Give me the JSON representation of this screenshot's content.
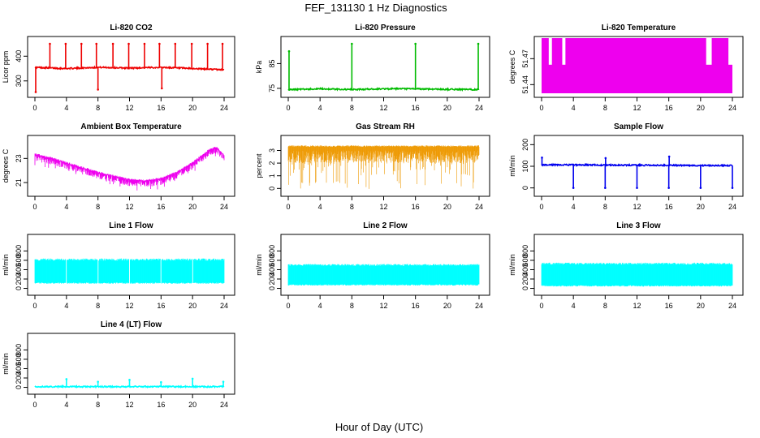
{
  "figure": {
    "title": "FEF_131130  1 Hz Diagnostics",
    "xlabel": "Hour of Day (UTC)"
  },
  "chart_data": [
    {
      "type": "line",
      "title": "Li-820 CO2",
      "ylabel": "Licor ppm",
      "color": "#ee0000",
      "xlim": [
        0,
        24
      ],
      "ylim": [
        250,
        460
      ],
      "x_ticks": [
        "0",
        "4",
        "8",
        "12",
        "16",
        "20",
        "24"
      ],
      "y_ticks": [
        "300",
        "400"
      ],
      "band": [
        {
          "x": 0,
          "y": 355
        },
        {
          "x": 4,
          "y": 350
        },
        {
          "x": 8,
          "y": 355
        },
        {
          "x": 12,
          "y": 352
        },
        {
          "x": 16,
          "y": 355
        },
        {
          "x": 20,
          "y": 350
        },
        {
          "x": 24,
          "y": 345
        }
      ],
      "spikes": [
        {
          "x": 0.1,
          "y": 255
        },
        {
          "x": 1.9,
          "y": 450
        },
        {
          "x": 3.9,
          "y": 450
        },
        {
          "x": 5.9,
          "y": 450
        },
        {
          "x": 7.8,
          "y": 450
        },
        {
          "x": 8.0,
          "y": 265
        },
        {
          "x": 9.9,
          "y": 450
        },
        {
          "x": 11.9,
          "y": 450
        },
        {
          "x": 13.9,
          "y": 450
        },
        {
          "x": 15.8,
          "y": 450
        },
        {
          "x": 16.1,
          "y": 270
        },
        {
          "x": 17.8,
          "y": 450
        },
        {
          "x": 19.9,
          "y": 450
        },
        {
          "x": 21.9,
          "y": 450
        },
        {
          "x": 23.8,
          "y": 450
        }
      ]
    },
    {
      "type": "line",
      "title": "Li-820 Pressure",
      "ylabel": "kPa",
      "color": "#00bb00",
      "xlim": [
        0,
        24
      ],
      "ylim": [
        73,
        94
      ],
      "x_ticks": [
        "0",
        "4",
        "8",
        "12",
        "16",
        "20",
        "24"
      ],
      "y_ticks": [
        "75",
        "85"
      ],
      "band": [
        {
          "x": 0,
          "y": 74.5
        },
        {
          "x": 4,
          "y": 74.8
        },
        {
          "x": 8,
          "y": 74.5
        },
        {
          "x": 12,
          "y": 74.8
        },
        {
          "x": 16,
          "y": 74.8
        },
        {
          "x": 20,
          "y": 74.6
        },
        {
          "x": 24,
          "y": 74.5
        }
      ],
      "spikes": [
        {
          "x": 0.1,
          "y": 90
        },
        {
          "x": 8.0,
          "y": 93
        },
        {
          "x": 16.0,
          "y": 93
        },
        {
          "x": 23.9,
          "y": 93
        }
      ]
    },
    {
      "type": "area",
      "title": "Li-820 Temperature",
      "ylabel": "degrees C",
      "color": "#ee00ee",
      "xlim": [
        0,
        24
      ],
      "ylim": [
        51.43,
        51.49
      ],
      "x_ticks": [
        "0",
        "4",
        "8",
        "12",
        "16",
        "20",
        "24"
      ],
      "y_ticks": [
        "51.44",
        "51.47"
      ],
      "y_tick_values": [
        51.44,
        51.47
      ],
      "fill_to": 51.463,
      "full_height_intervals": [
        [
          0,
          0.9
        ],
        [
          1.3,
          2.6
        ],
        [
          3.0,
          20.7
        ],
        [
          21.4,
          23.5
        ]
      ]
    },
    {
      "type": "line",
      "title": "Ambient Box Temperature",
      "ylabel": "degrees C",
      "color": "#ee00ee",
      "xlim": [
        0,
        24
      ],
      "ylim": [
        20.2,
        24.5
      ],
      "x_ticks": [
        "0",
        "4",
        "8",
        "12",
        "16",
        "20",
        "24"
      ],
      "y_ticks": [
        "21",
        "23"
      ],
      "series": [
        {
          "x": 0,
          "y": 23.3
        },
        {
          "x": 2,
          "y": 23.0
        },
        {
          "x": 4,
          "y": 22.6
        },
        {
          "x": 6,
          "y": 22.2
        },
        {
          "x": 8,
          "y": 21.8
        },
        {
          "x": 10,
          "y": 21.5
        },
        {
          "x": 12,
          "y": 21.2
        },
        {
          "x": 14,
          "y": 21.1
        },
        {
          "x": 16,
          "y": 21.3
        },
        {
          "x": 18,
          "y": 21.8
        },
        {
          "x": 20,
          "y": 22.6
        },
        {
          "x": 22,
          "y": 23.6
        },
        {
          "x": 23,
          "y": 23.9
        },
        {
          "x": 24,
          "y": 23.2
        }
      ],
      "noise": 0.55
    },
    {
      "type": "area",
      "title": "Gas Stream RH",
      "ylabel": "percent",
      "color": "#ee9900",
      "xlim": [
        0,
        24
      ],
      "ylim": [
        -0.3,
        3.8
      ],
      "x_ticks": [
        "0",
        "4",
        "8",
        "12",
        "16",
        "20",
        "24"
      ],
      "y_ticks": [
        "0",
        "1",
        "2",
        "3"
      ],
      "upper": 3.4,
      "lower_typical": 2.0,
      "lower_min": -0.1
    },
    {
      "type": "line",
      "title": "Sample Flow",
      "ylabel": "ml/min",
      "color": "#0000ee",
      "xlim": [
        0,
        24
      ],
      "ylim": [
        -20,
        220
      ],
      "x_ticks": [
        "0",
        "4",
        "8",
        "12",
        "16",
        "20",
        "24"
      ],
      "y_ticks": [
        "0",
        "100",
        "200"
      ],
      "band": [
        {
          "x": 0,
          "y": 107
        },
        {
          "x": 12,
          "y": 105
        },
        {
          "x": 24,
          "y": 103
        }
      ],
      "spikes": [
        {
          "x": 0.05,
          "y": 140
        },
        {
          "x": 4.0,
          "y": 0
        },
        {
          "x": 8.0,
          "y": 0
        },
        {
          "x": 8.05,
          "y": 138
        },
        {
          "x": 12.0,
          "y": 0
        },
        {
          "x": 16.0,
          "y": 0
        },
        {
          "x": 16.05,
          "y": 145
        },
        {
          "x": 20.0,
          "y": 0
        },
        {
          "x": 24.0,
          "y": 0
        }
      ]
    },
    {
      "type": "area",
      "title": "Line 1 Flow",
      "ylabel": "ml/min",
      "color": "#00ffff",
      "xlim": [
        0,
        24
      ],
      "ylim": [
        -60,
        1050
      ],
      "x_ticks": [
        "0",
        "4",
        "8",
        "12",
        "16",
        "20",
        "24"
      ],
      "y_ticks": [
        "0",
        "200",
        "400",
        "600",
        "800"
      ],
      "upper": 640,
      "lower": 100,
      "gaps": [
        4.0,
        8.0,
        12.0,
        16.0,
        20.0
      ]
    },
    {
      "type": "area",
      "title": "Line 2 Flow",
      "ylabel": "ml/min",
      "color": "#00ffff",
      "xlim": [
        0,
        24
      ],
      "ylim": [
        -60,
        1050
      ],
      "x_ticks": [
        "0",
        "4",
        "8",
        "12",
        "16",
        "20",
        "24"
      ],
      "y_ticks": [
        "0",
        "200",
        "400",
        "600",
        "800"
      ],
      "upper": 520,
      "lower": 60,
      "gaps": []
    },
    {
      "type": "area",
      "title": "Line 3 Flow",
      "ylabel": "ml/min",
      "color": "#00ffff",
      "xlim": [
        0,
        24
      ],
      "ylim": [
        -60,
        1050
      ],
      "x_ticks": [
        "0",
        "4",
        "8",
        "12",
        "16",
        "20",
        "24"
      ],
      "y_ticks": [
        "0",
        "200",
        "400",
        "600",
        "800"
      ],
      "upper": 550,
      "lower": 40,
      "gaps": []
    },
    {
      "type": "line",
      "title": "Line 4 (LT) Flow",
      "ylabel": "ml/min",
      "color": "#00ffff",
      "xlim": [
        0,
        24
      ],
      "ylim": [
        -60,
        1050
      ],
      "x_ticks": [
        "0",
        "4",
        "8",
        "12",
        "16",
        "20",
        "24"
      ],
      "y_ticks": [
        "0",
        "200",
        "400",
        "600",
        "800"
      ],
      "band": [
        {
          "x": 0,
          "y": 15
        },
        {
          "x": 24,
          "y": 15
        }
      ],
      "spikes": [
        {
          "x": 4.0,
          "y": 175
        },
        {
          "x": 8.0,
          "y": 120
        },
        {
          "x": 12.0,
          "y": 160
        },
        {
          "x": 16.0,
          "y": 110
        },
        {
          "x": 20.0,
          "y": 185
        },
        {
          "x": 23.9,
          "y": 120
        }
      ]
    }
  ]
}
